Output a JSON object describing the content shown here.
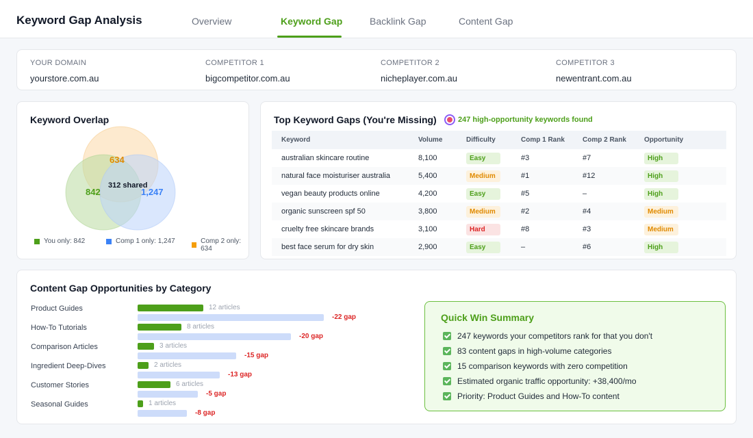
{
  "header": {
    "title": "Keyword Gap Analysis",
    "tabs": [
      {
        "label": "Overview",
        "active": false
      },
      {
        "label": "Keyword Gap",
        "active": true
      },
      {
        "label": "Backlink Gap",
        "active": false
      },
      {
        "label": "Content Gap",
        "active": false
      }
    ]
  },
  "domains": [
    {
      "label": "YOUR DOMAIN",
      "value": "yourstore.com.au"
    },
    {
      "label": "COMPETITOR 1",
      "value": "bigcompetitor.com.au"
    },
    {
      "label": "COMPETITOR 2",
      "value": "nicheplayer.com.au"
    },
    {
      "label": "COMPETITOR 3",
      "value": "newentrant.com.au"
    }
  ],
  "overlap": {
    "title": "Keyword Overlap",
    "comp2_count": "634",
    "you_count": "842",
    "comp1_count": "1,247",
    "shared": "312 shared",
    "legend": [
      {
        "label": "You only: 842",
        "color": "#4d9f1a"
      },
      {
        "label": "Comp 1 only: 1,247",
        "color": "#3b82f6"
      },
      {
        "label": "Comp 2 only: 634",
        "color": "#f59e0b"
      }
    ]
  },
  "gaps": {
    "title": "Top Keyword Gaps (You're Missing)",
    "found": "247 high-opportunity keywords found",
    "columns": [
      "Keyword",
      "Volume",
      "Difficulty",
      "Comp 1 Rank",
      "Comp 2 Rank",
      "Opportunity"
    ],
    "rows": [
      {
        "keyword": "australian skincare routine",
        "volume": "8,100",
        "difficulty": "Easy",
        "c1": "#3",
        "c2": "#7",
        "opportunity": "High"
      },
      {
        "keyword": "natural face moisturiser australia",
        "volume": "5,400",
        "difficulty": "Medium",
        "c1": "#1",
        "c2": "#12",
        "opportunity": "High"
      },
      {
        "keyword": "vegan beauty products online",
        "volume": "4,200",
        "difficulty": "Easy",
        "c1": "#5",
        "c2": "–",
        "opportunity": "High"
      },
      {
        "keyword": "organic sunscreen spf 50",
        "volume": "3,800",
        "difficulty": "Medium",
        "c1": "#2",
        "c2": "#4",
        "opportunity": "Medium"
      },
      {
        "keyword": "cruelty free skincare brands",
        "volume": "3,100",
        "difficulty": "Hard",
        "c1": "#8",
        "c2": "#3",
        "opportunity": "Medium"
      },
      {
        "keyword": "best face serum for dry skin",
        "volume": "2,900",
        "difficulty": "Easy",
        "c1": "–",
        "c2": "#6",
        "opportunity": "High"
      }
    ]
  },
  "content": {
    "title": "Content Gap Opportunities by Category",
    "categories": [
      {
        "name": "Product Guides",
        "articles": 12,
        "articles_label": "12 articles",
        "competitor": 34,
        "gap_label": "-22 gap"
      },
      {
        "name": "How-To Tutorials",
        "articles": 8,
        "articles_label": "8 articles",
        "competitor": 28,
        "gap_label": "-20 gap"
      },
      {
        "name": "Comparison Articles",
        "articles": 3,
        "articles_label": "3 articles",
        "competitor": 18,
        "gap_label": "-15 gap"
      },
      {
        "name": "Ingredient Deep-Dives",
        "articles": 2,
        "articles_label": "2 articles",
        "competitor": 15,
        "gap_label": "-13 gap"
      },
      {
        "name": "Customer Stories",
        "articles": 6,
        "articles_label": "6 articles",
        "competitor": 11,
        "gap_label": "-5 gap"
      },
      {
        "name": "Seasonal Guides",
        "articles": 1,
        "articles_label": "1 articles",
        "competitor": 9,
        "gap_label": "-8 gap"
      }
    ]
  },
  "quickwin": {
    "title": "Quick Win Summary",
    "items": [
      "247 keywords your competitors rank for that you don't",
      "83 content gaps in high-volume categories",
      "15 comparison keywords with zero competition",
      "Estimated organic traffic opportunity: +38,400/mo",
      "Priority: Product Guides and How-To content"
    ]
  }
}
